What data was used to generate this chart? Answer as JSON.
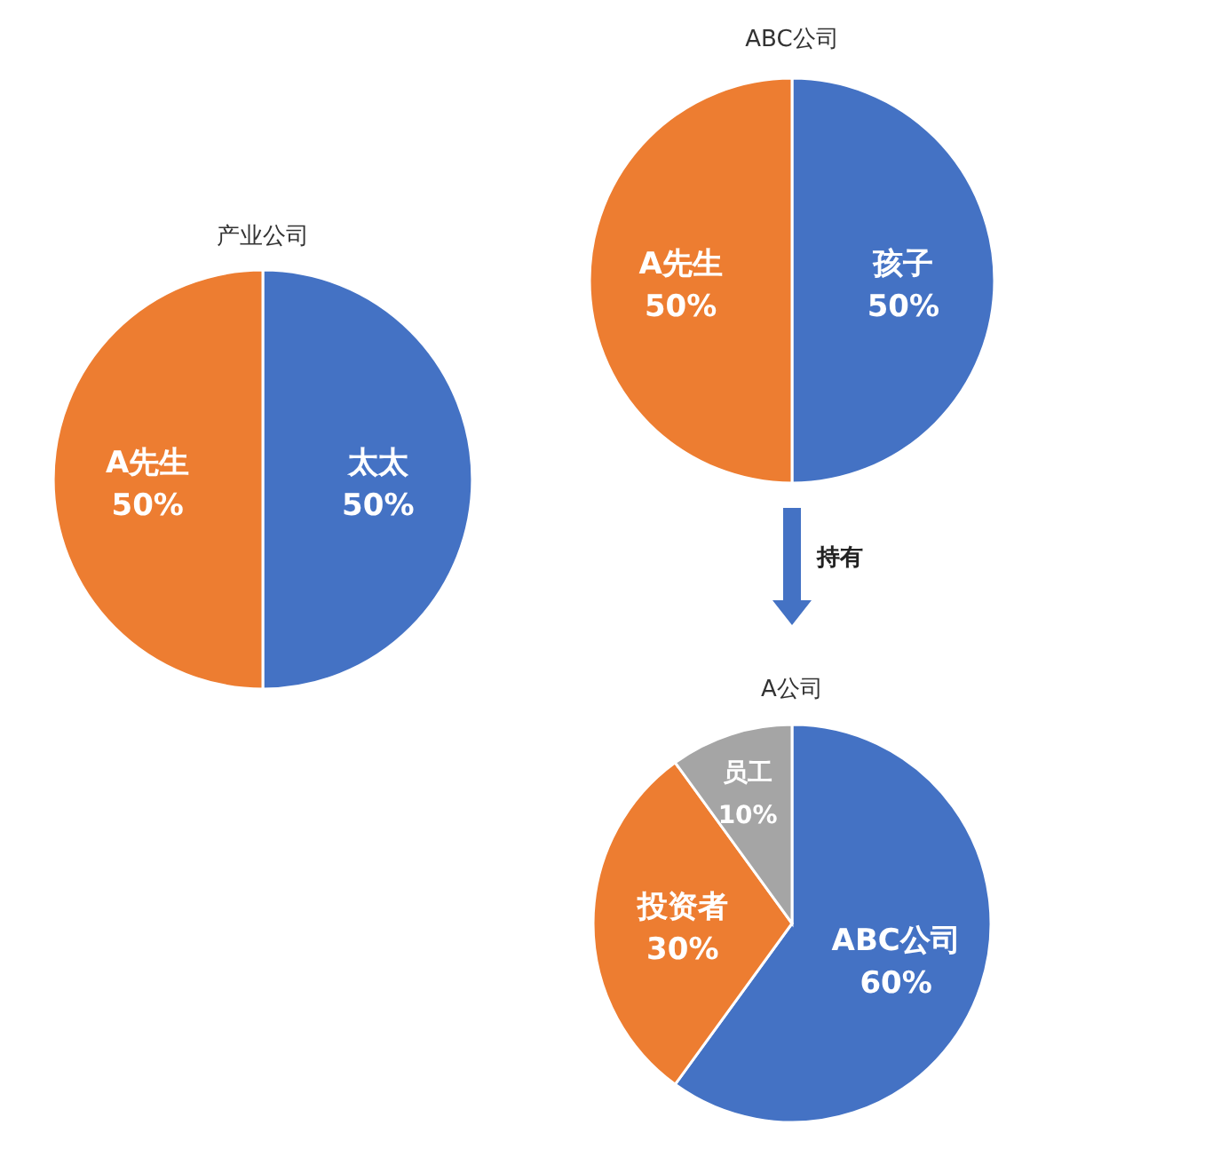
{
  "chart_data": [
    {
      "type": "pie",
      "title": "产业公司",
      "categories": [
        "太太",
        "A先生"
      ],
      "values": [
        50,
        50
      ],
      "colors": [
        "#4472c4",
        "#ed7d31"
      ],
      "value_labels": [
        "50%",
        "50%"
      ]
    },
    {
      "type": "pie",
      "title": "ABC公司",
      "categories": [
        "孩子",
        "A先生"
      ],
      "values": [
        50,
        50
      ],
      "colors": [
        "#4472c4",
        "#ed7d31"
      ],
      "value_labels": [
        "50%",
        "50%"
      ]
    },
    {
      "type": "pie",
      "title": "A公司",
      "categories": [
        "ABC公司",
        "投资者",
        "员工"
      ],
      "values": [
        60,
        30,
        10
      ],
      "colors": [
        "#4472c4",
        "#ed7d31",
        "#a5a5a5"
      ],
      "value_labels": [
        "60%",
        "30%",
        "10%"
      ],
      "annotations": [
        "持有"
      ]
    }
  ]
}
